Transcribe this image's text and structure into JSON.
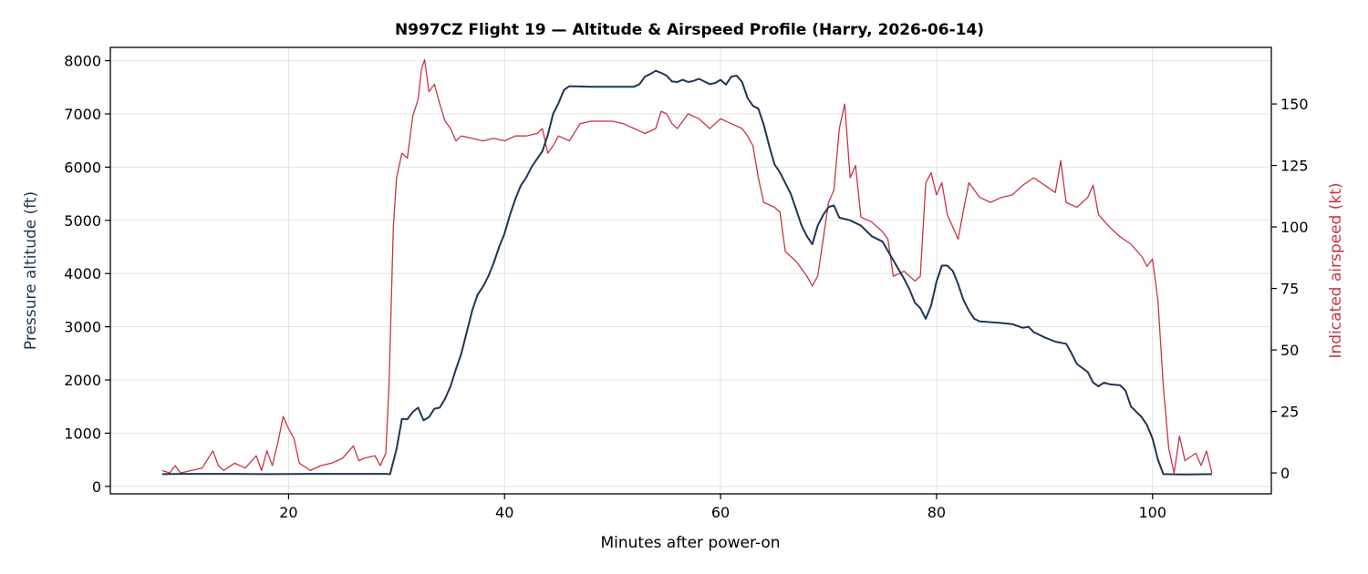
{
  "chart_data": {
    "type": "line",
    "title": "N997CZ Flight 19 — Altitude & Airspeed Profile (Harry, 2026-06-14)",
    "xlabel": "Minutes after power-on",
    "ylabel": "Pressure altitude (ft)",
    "y2label": "Indicated airspeed (kt)",
    "xlim": [
      3.5,
      111
    ],
    "ylim": [
      -140,
      8250
    ],
    "y2lim": [
      -8.5,
      173
    ],
    "x_ticks": [
      20,
      40,
      60,
      80,
      100
    ],
    "y_ticks": [
      0,
      1000,
      2000,
      3000,
      4000,
      5000,
      6000,
      7000,
      8000
    ],
    "y2_ticks": [
      0,
      25,
      50,
      75,
      100,
      125,
      150
    ],
    "grid": true,
    "series": [
      {
        "axis": "left",
        "color": "#1f3556",
        "points": [
          [
            8.3,
            230
          ],
          [
            10,
            235
          ],
          [
            14,
            235
          ],
          [
            18,
            230
          ],
          [
            22,
            235
          ],
          [
            26,
            235
          ],
          [
            29,
            235
          ],
          [
            29.4,
            230
          ],
          [
            30,
            700
          ],
          [
            30.5,
            1270
          ],
          [
            31,
            1260
          ],
          [
            31.5,
            1400
          ],
          [
            32,
            1480
          ],
          [
            32.5,
            1240
          ],
          [
            33,
            1300
          ],
          [
            33.5,
            1460
          ],
          [
            34,
            1480
          ],
          [
            34.5,
            1650
          ],
          [
            35,
            1880
          ],
          [
            35.5,
            2200
          ],
          [
            36,
            2500
          ],
          [
            36.5,
            2900
          ],
          [
            37,
            3300
          ],
          [
            37.5,
            3600
          ],
          [
            38,
            3750
          ],
          [
            38.5,
            3950
          ],
          [
            39,
            4200
          ],
          [
            39.5,
            4500
          ],
          [
            40,
            4750
          ],
          [
            40.5,
            5100
          ],
          [
            41,
            5400
          ],
          [
            41.5,
            5650
          ],
          [
            42,
            5800
          ],
          [
            42.5,
            6000
          ],
          [
            43,
            6150
          ],
          [
            43.5,
            6300
          ],
          [
            44,
            6600
          ],
          [
            44.5,
            7000
          ],
          [
            45,
            7200
          ],
          [
            45.5,
            7450
          ],
          [
            46,
            7520
          ],
          [
            48,
            7510
          ],
          [
            50,
            7510
          ],
          [
            52,
            7510
          ],
          [
            52.5,
            7560
          ],
          [
            53,
            7700
          ],
          [
            53.5,
            7750
          ],
          [
            54,
            7810
          ],
          [
            54.5,
            7770
          ],
          [
            55,
            7720
          ],
          [
            55.5,
            7610
          ],
          [
            56,
            7600
          ],
          [
            56.5,
            7640
          ],
          [
            57,
            7600
          ],
          [
            57.5,
            7620
          ],
          [
            58,
            7660
          ],
          [
            58.5,
            7610
          ],
          [
            59,
            7560
          ],
          [
            59.5,
            7580
          ],
          [
            60,
            7640
          ],
          [
            60.5,
            7550
          ],
          [
            61,
            7700
          ],
          [
            61.5,
            7720
          ],
          [
            62,
            7600
          ],
          [
            62.5,
            7300
          ],
          [
            63,
            7150
          ],
          [
            63.5,
            7100
          ],
          [
            64,
            6800
          ],
          [
            64.5,
            6400
          ],
          [
            65,
            6050
          ],
          [
            65.5,
            5900
          ],
          [
            66,
            5700
          ],
          [
            66.5,
            5500
          ],
          [
            67,
            5200
          ],
          [
            67.5,
            4900
          ],
          [
            68,
            4700
          ],
          [
            68.5,
            4550
          ],
          [
            69,
            4900
          ],
          [
            69.5,
            5100
          ],
          [
            70,
            5250
          ],
          [
            70.5,
            5280
          ],
          [
            71,
            5050
          ],
          [
            72,
            5000
          ],
          [
            73,
            4900
          ],
          [
            74,
            4700
          ],
          [
            75,
            4600
          ],
          [
            76,
            4250
          ],
          [
            77,
            3900
          ],
          [
            77.5,
            3700
          ],
          [
            78,
            3450
          ],
          [
            78.5,
            3350
          ],
          [
            79,
            3150
          ],
          [
            79.5,
            3400
          ],
          [
            80,
            3850
          ],
          [
            80.5,
            4150
          ],
          [
            81,
            4150
          ],
          [
            81.5,
            4050
          ],
          [
            82,
            3800
          ],
          [
            82.5,
            3500
          ],
          [
            83,
            3300
          ],
          [
            83.5,
            3150
          ],
          [
            84,
            3100
          ],
          [
            86,
            3070
          ],
          [
            87,
            3050
          ],
          [
            88,
            2980
          ],
          [
            88.5,
            3000
          ],
          [
            89,
            2900
          ],
          [
            90,
            2800
          ],
          [
            91,
            2720
          ],
          [
            92,
            2680
          ],
          [
            92.5,
            2500
          ],
          [
            93,
            2300
          ],
          [
            94,
            2150
          ],
          [
            94.5,
            1950
          ],
          [
            95,
            1880
          ],
          [
            95.5,
            1950
          ],
          [
            96,
            1920
          ],
          [
            97,
            1900
          ],
          [
            97.5,
            1800
          ],
          [
            98,
            1500
          ],
          [
            98.5,
            1400
          ],
          [
            99,
            1300
          ],
          [
            99.5,
            1150
          ],
          [
            100,
            900
          ],
          [
            100.5,
            500
          ],
          [
            101,
            230
          ],
          [
            103,
            225
          ],
          [
            105.5,
            230
          ]
        ]
      },
      {
        "axis": "right",
        "color": "#c93444",
        "points": [
          [
            8.3,
            1
          ],
          [
            9,
            0
          ],
          [
            9.5,
            3
          ],
          [
            10,
            0
          ],
          [
            11,
            1
          ],
          [
            12,
            2
          ],
          [
            13,
            9
          ],
          [
            13.5,
            3
          ],
          [
            14,
            1
          ],
          [
            15,
            4
          ],
          [
            16,
            2
          ],
          [
            17,
            7
          ],
          [
            17.5,
            1
          ],
          [
            18,
            9
          ],
          [
            18.5,
            3
          ],
          [
            19,
            12
          ],
          [
            19.5,
            23
          ],
          [
            20,
            18
          ],
          [
            20.5,
            14
          ],
          [
            21,
            4
          ],
          [
            22,
            1
          ],
          [
            23,
            3
          ],
          [
            24,
            4
          ],
          [
            25,
            6
          ],
          [
            26,
            11
          ],
          [
            26.5,
            5
          ],
          [
            27,
            6
          ],
          [
            28,
            7
          ],
          [
            28.5,
            3
          ],
          [
            29,
            8
          ],
          [
            29.3,
            35
          ],
          [
            29.7,
            100
          ],
          [
            30,
            120
          ],
          [
            30.5,
            130
          ],
          [
            31,
            128
          ],
          [
            31.5,
            145
          ],
          [
            32,
            152
          ],
          [
            32.3,
            164
          ],
          [
            32.6,
            168
          ],
          [
            33,
            155
          ],
          [
            33.5,
            158
          ],
          [
            34,
            150
          ],
          [
            34.5,
            143
          ],
          [
            35,
            140
          ],
          [
            35.5,
            135
          ],
          [
            36,
            137
          ],
          [
            37,
            136
          ],
          [
            38,
            135
          ],
          [
            39,
            136
          ],
          [
            40,
            135
          ],
          [
            41,
            137
          ],
          [
            42,
            137
          ],
          [
            43,
            138
          ],
          [
            43.5,
            140
          ],
          [
            44,
            130
          ],
          [
            44.5,
            133
          ],
          [
            45,
            137
          ],
          [
            46,
            135
          ],
          [
            47,
            142
          ],
          [
            48,
            143
          ],
          [
            49,
            143
          ],
          [
            50,
            143
          ],
          [
            51,
            142
          ],
          [
            52,
            140
          ],
          [
            52.5,
            139
          ],
          [
            53,
            138
          ],
          [
            54,
            140
          ],
          [
            54.5,
            147
          ],
          [
            55,
            146
          ],
          [
            55.5,
            142
          ],
          [
            56,
            140
          ],
          [
            57,
            146
          ],
          [
            58,
            144
          ],
          [
            59,
            140
          ],
          [
            60,
            144
          ],
          [
            61,
            142
          ],
          [
            62,
            140
          ],
          [
            62.5,
            137
          ],
          [
            63,
            133
          ],
          [
            63.5,
            120
          ],
          [
            64,
            110
          ],
          [
            65,
            108
          ],
          [
            65.5,
            106
          ],
          [
            66,
            90
          ],
          [
            67,
            86
          ],
          [
            68,
            80
          ],
          [
            68.5,
            76
          ],
          [
            69,
            80
          ],
          [
            69.5,
            95
          ],
          [
            70,
            110
          ],
          [
            70.5,
            115
          ],
          [
            71,
            140
          ],
          [
            71.5,
            150
          ],
          [
            72,
            120
          ],
          [
            72.5,
            125
          ],
          [
            73,
            104
          ],
          [
            74,
            102
          ],
          [
            75,
            98
          ],
          [
            75.5,
            95
          ],
          [
            76,
            80
          ],
          [
            77,
            82
          ],
          [
            78,
            78
          ],
          [
            78.5,
            80
          ],
          [
            79,
            118
          ],
          [
            79.5,
            122
          ],
          [
            80,
            113
          ],
          [
            80.5,
            118
          ],
          [
            81,
            105
          ],
          [
            81.5,
            100
          ],
          [
            82,
            95
          ],
          [
            82.5,
            107
          ],
          [
            83,
            118
          ],
          [
            84,
            112
          ],
          [
            85,
            110
          ],
          [
            86,
            112
          ],
          [
            87,
            113
          ],
          [
            88,
            117
          ],
          [
            89,
            120
          ],
          [
            90,
            117
          ],
          [
            91,
            114
          ],
          [
            91.5,
            127
          ],
          [
            92,
            110
          ],
          [
            93,
            108
          ],
          [
            94,
            112
          ],
          [
            94.5,
            117
          ],
          [
            95,
            105
          ],
          [
            96,
            100
          ],
          [
            97,
            96
          ],
          [
            98,
            93
          ],
          [
            99,
            88
          ],
          [
            99.5,
            84
          ],
          [
            100,
            87
          ],
          [
            100.5,
            70
          ],
          [
            101,
            35
          ],
          [
            101.5,
            10
          ],
          [
            102,
            0
          ],
          [
            102.5,
            15
          ],
          [
            103,
            5
          ],
          [
            104,
            8
          ],
          [
            104.5,
            3
          ],
          [
            105,
            9
          ],
          [
            105.5,
            0
          ]
        ]
      }
    ]
  }
}
